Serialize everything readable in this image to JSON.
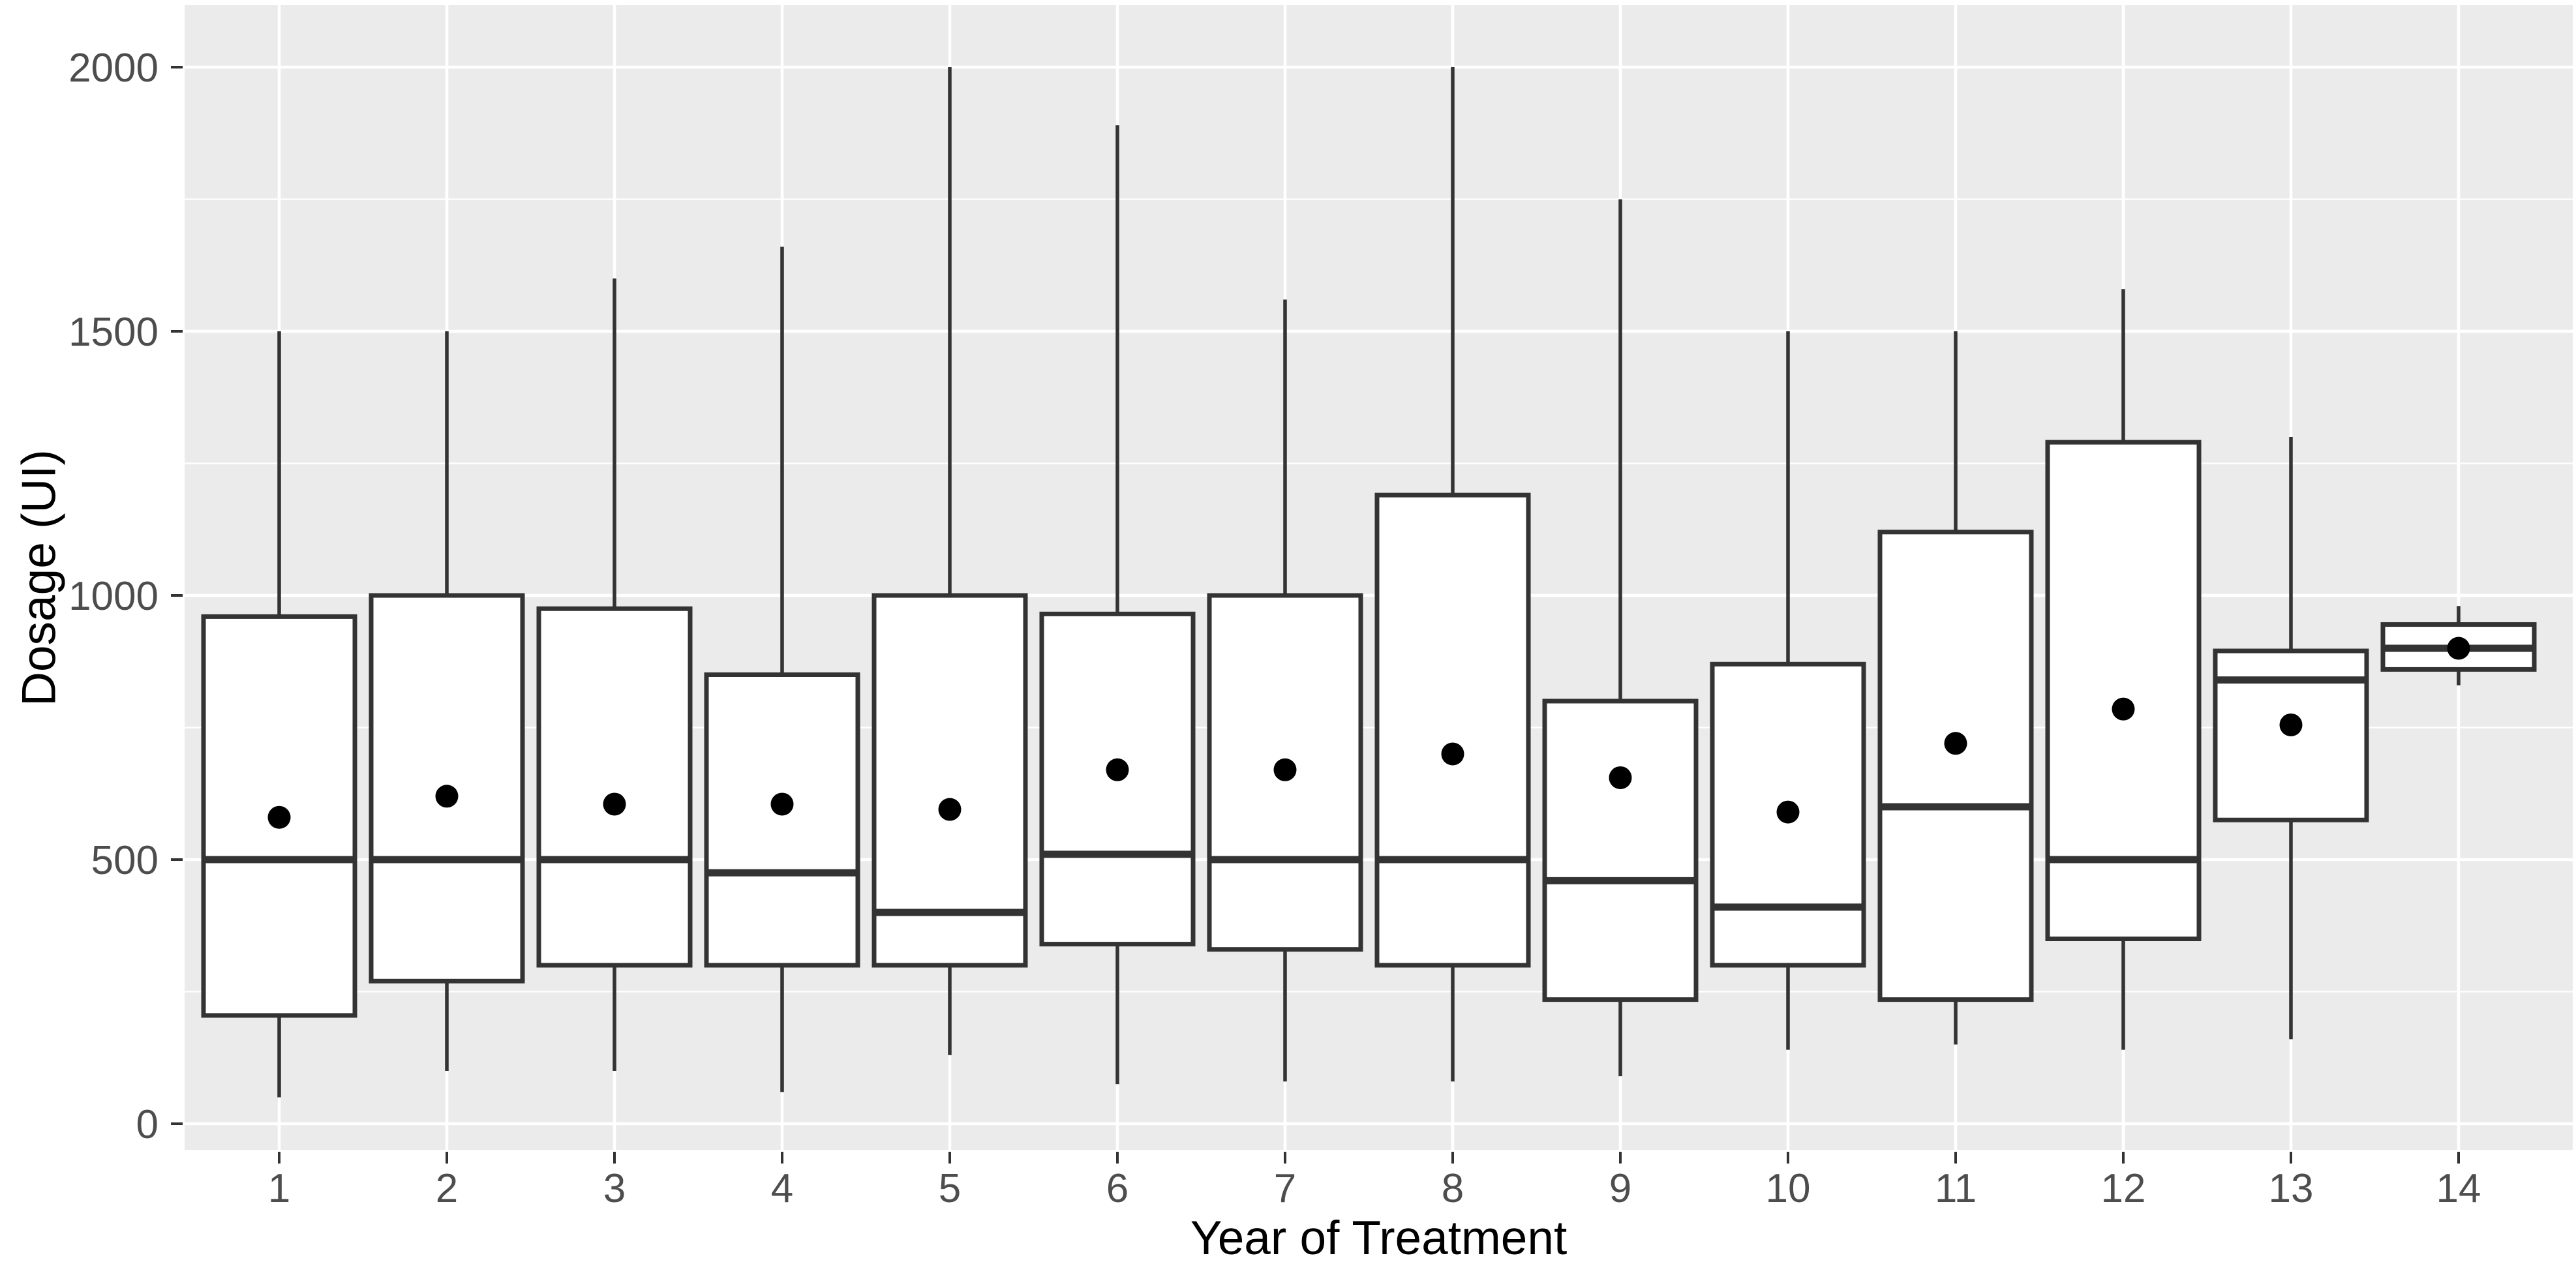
{
  "chart_data": {
    "type": "boxplot",
    "title": "",
    "xlabel": "Year of Treatment",
    "ylabel": "Dosage (UI)",
    "categories": [
      "1",
      "2",
      "3",
      "4",
      "5",
      "6",
      "7",
      "8",
      "9",
      "10",
      "11",
      "12",
      "13",
      "14"
    ],
    "y_ticks": [
      0,
      500,
      1000,
      1500,
      2000
    ],
    "y_minor_gridlines": [
      250,
      750,
      1250,
      1750
    ],
    "ylim": [
      0,
      2050
    ],
    "grid": "major-and-minor-horizontal-plus-category-vertical",
    "legend_position": "none",
    "mean_marker": "filled-black-point",
    "series": [
      {
        "category": "1",
        "whisker_low": 50,
        "q1": 205,
        "median": 500,
        "mean": 580,
        "q3": 960,
        "whisker_high": 1500
      },
      {
        "category": "2",
        "whisker_low": 100,
        "q1": 270,
        "median": 500,
        "mean": 620,
        "q3": 1000,
        "whisker_high": 1500
      },
      {
        "category": "3",
        "whisker_low": 100,
        "q1": 300,
        "median": 500,
        "mean": 605,
        "q3": 975,
        "whisker_high": 1600
      },
      {
        "category": "4",
        "whisker_low": 60,
        "q1": 300,
        "median": 475,
        "mean": 605,
        "q3": 850,
        "whisker_high": 1660
      },
      {
        "category": "5",
        "whisker_low": 130,
        "q1": 300,
        "median": 400,
        "mean": 595,
        "q3": 1000,
        "whisker_high": 2000
      },
      {
        "category": "6",
        "whisker_low": 75,
        "q1": 340,
        "median": 510,
        "mean": 670,
        "q3": 965,
        "whisker_high": 1890
      },
      {
        "category": "7",
        "whisker_low": 80,
        "q1": 330,
        "median": 500,
        "mean": 670,
        "q3": 1000,
        "whisker_high": 1560
      },
      {
        "category": "8",
        "whisker_low": 80,
        "q1": 300,
        "median": 500,
        "mean": 700,
        "q3": 1190,
        "whisker_high": 2000
      },
      {
        "category": "9",
        "whisker_low": 90,
        "q1": 235,
        "median": 460,
        "mean": 655,
        "q3": 800,
        "whisker_high": 1750
      },
      {
        "category": "10",
        "whisker_low": 140,
        "q1": 300,
        "median": 410,
        "mean": 590,
        "q3": 870,
        "whisker_high": 1500
      },
      {
        "category": "11",
        "whisker_low": 150,
        "q1": 235,
        "median": 600,
        "mean": 720,
        "q3": 1120,
        "whisker_high": 1500
      },
      {
        "category": "12",
        "whisker_low": 140,
        "q1": 350,
        "median": 500,
        "mean": 785,
        "q3": 1290,
        "whisker_high": 1580
      },
      {
        "category": "13",
        "whisker_low": 160,
        "q1": 575,
        "median": 840,
        "mean": 755,
        "q3": 895,
        "whisker_high": 1300
      },
      {
        "category": "14",
        "whisker_low": 830,
        "q1": 860,
        "median": 900,
        "mean": 900,
        "q3": 945,
        "whisker_high": 980
      }
    ]
  },
  "colors": {
    "page_background": "#FFFFFF",
    "panel_background": "#EBEBEB",
    "gridline": "#FFFFFF",
    "box_fill": "#FFFFFF",
    "box_stroke": "#333333",
    "median_stroke": "#333333",
    "whisker_stroke": "#333333",
    "mean_point": "#000000",
    "tick_mark": "#333333",
    "tick_label": "#4D4D4D",
    "axis_title": "#000000"
  }
}
